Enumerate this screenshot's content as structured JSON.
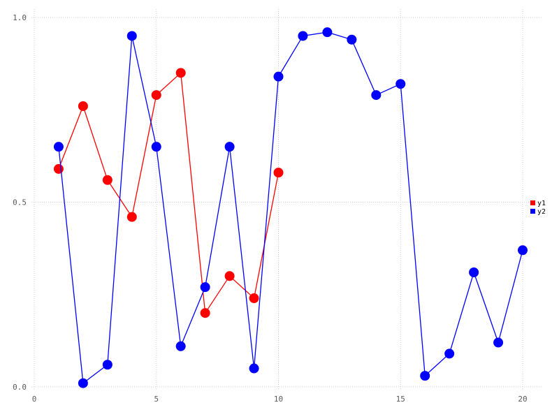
{
  "chart_data": {
    "type": "line",
    "title": "",
    "xlabel": "",
    "ylabel": "",
    "x": [
      1,
      2,
      3,
      4,
      5,
      6,
      7,
      8,
      9,
      10,
      11,
      12,
      13,
      14,
      15,
      16,
      17,
      18,
      19,
      20
    ],
    "series": [
      {
        "name": "y1",
        "color": "#ff0000",
        "x": [
          1,
          2,
          3,
          4,
          5,
          6,
          7,
          8,
          9,
          10
        ],
        "values": [
          0.59,
          0.76,
          0.56,
          0.46,
          0.79,
          0.85,
          0.2,
          0.3,
          0.24,
          0.58
        ]
      },
      {
        "name": "y2",
        "color": "#0000ff",
        "x": [
          1,
          2,
          3,
          4,
          5,
          6,
          7,
          8,
          9,
          10,
          11,
          12,
          13,
          14,
          15,
          16,
          17,
          18,
          19,
          20
        ],
        "values": [
          0.65,
          0.01,
          0.06,
          0.95,
          0.65,
          0.11,
          0.27,
          0.65,
          0.05,
          0.84,
          0.95,
          0.96,
          0.94,
          0.79,
          0.82,
          0.03,
          0.09,
          0.31,
          0.12,
          0.37
        ]
      }
    ],
    "xlim": [
      0,
      20.8
    ],
    "ylim": [
      0,
      1.05
    ],
    "xticks": {
      "values": [
        0,
        5,
        10,
        15,
        20
      ],
      "labels": [
        "0",
        "5",
        "10",
        "15",
        "20"
      ]
    },
    "yticks": {
      "values": [
        0,
        0.5,
        1.0
      ],
      "labels": [
        "0.0",
        "0.5",
        "1.0"
      ]
    },
    "grid": "dotted",
    "legend": {
      "position": "right",
      "items": [
        {
          "label": "y1",
          "color": "#ff0000"
        },
        {
          "label": "y2",
          "color": "#0000ff"
        }
      ]
    }
  },
  "styles": {
    "background": "#ffffff",
    "grid_color": "#ccccd6",
    "tick_color": "#595959",
    "legend_text_color": "#000000"
  }
}
